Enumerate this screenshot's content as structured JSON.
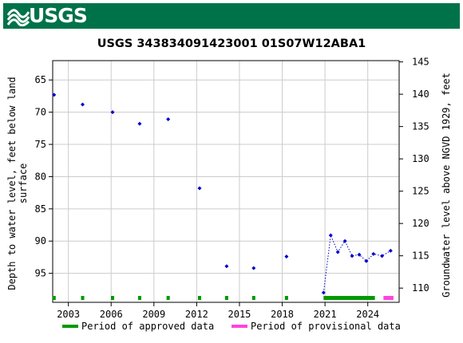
{
  "header": {
    "logo_text": "USGS",
    "brand_color": "#00724a"
  },
  "chart_data": {
    "type": "scatter",
    "title": "USGS 343834091423001 01S07W12ABA1",
    "ylabel_left": "Depth to water level, feet below land surface",
    "ylabel_left_lines": [
      "Depth to water level, feet below land",
      "surface"
    ],
    "ylabel_right": "Groundwater level above NGVD 1929, feet",
    "x_ticks": [
      "2003",
      "2006",
      "2009",
      "2012",
      "2015",
      "2018",
      "2021",
      "2024"
    ],
    "x_tick_years": [
      2003,
      2006,
      2009,
      2012,
      2015,
      2018,
      2021,
      2024
    ],
    "xlim": [
      2001.9,
      2026.2
    ],
    "y_left_ticks": [
      65,
      70,
      75,
      80,
      85,
      90,
      95
    ],
    "ylim_left": [
      62,
      99.5
    ],
    "y_right_ticks": [
      110,
      115,
      120,
      125,
      130,
      135,
      140,
      145
    ],
    "ylim_right": [
      107.8,
      145.2
    ],
    "grid": true,
    "marker_color": "#0000cc",
    "series": [
      {
        "points": [
          {
            "x": 2002.0,
            "y": 67.3
          },
          {
            "x": 2004.0,
            "y": 68.8
          },
          {
            "x": 2006.1,
            "y": 70.0
          },
          {
            "x": 2008.0,
            "y": 71.8
          },
          {
            "x": 2010.0,
            "y": 71.1
          },
          {
            "x": 2012.2,
            "y": 81.8
          },
          {
            "x": 2014.1,
            "y": 93.9
          },
          {
            "x": 2016.0,
            "y": 94.2
          },
          {
            "x": 2018.3,
            "y": 92.4
          },
          {
            "x": 2020.9,
            "y": 98.0
          },
          {
            "x": 2021.4,
            "y": 89.1
          },
          {
            "x": 2021.9,
            "y": 91.7
          },
          {
            "x": 2022.4,
            "y": 90.0
          },
          {
            "x": 2022.9,
            "y": 92.3
          },
          {
            "x": 2023.4,
            "y": 92.1
          },
          {
            "x": 2023.9,
            "y": 93.1
          },
          {
            "x": 2024.4,
            "y": 92.0
          },
          {
            "x": 2025.0,
            "y": 92.3
          },
          {
            "x": 2025.6,
            "y": 91.5
          }
        ],
        "dotted_line_from_index": 9
      }
    ],
    "approval_bar": {
      "approved_points": [
        2002.0,
        2004.0,
        2006.1,
        2008.0,
        2010.0,
        2012.2,
        2014.1,
        2016.0,
        2018.3
      ],
      "approved_range": [
        2020.9,
        2024.5
      ],
      "provisional_range": [
        2025.1,
        2025.8
      ],
      "approved_color": "#009900",
      "provisional_color": "#ff44dd"
    },
    "legend": {
      "position": "bottom",
      "items": [
        {
          "label": "Period of approved data",
          "color": "#009900"
        },
        {
          "label": "Period of provisional data",
          "color": "#ff44dd"
        }
      ]
    }
  }
}
